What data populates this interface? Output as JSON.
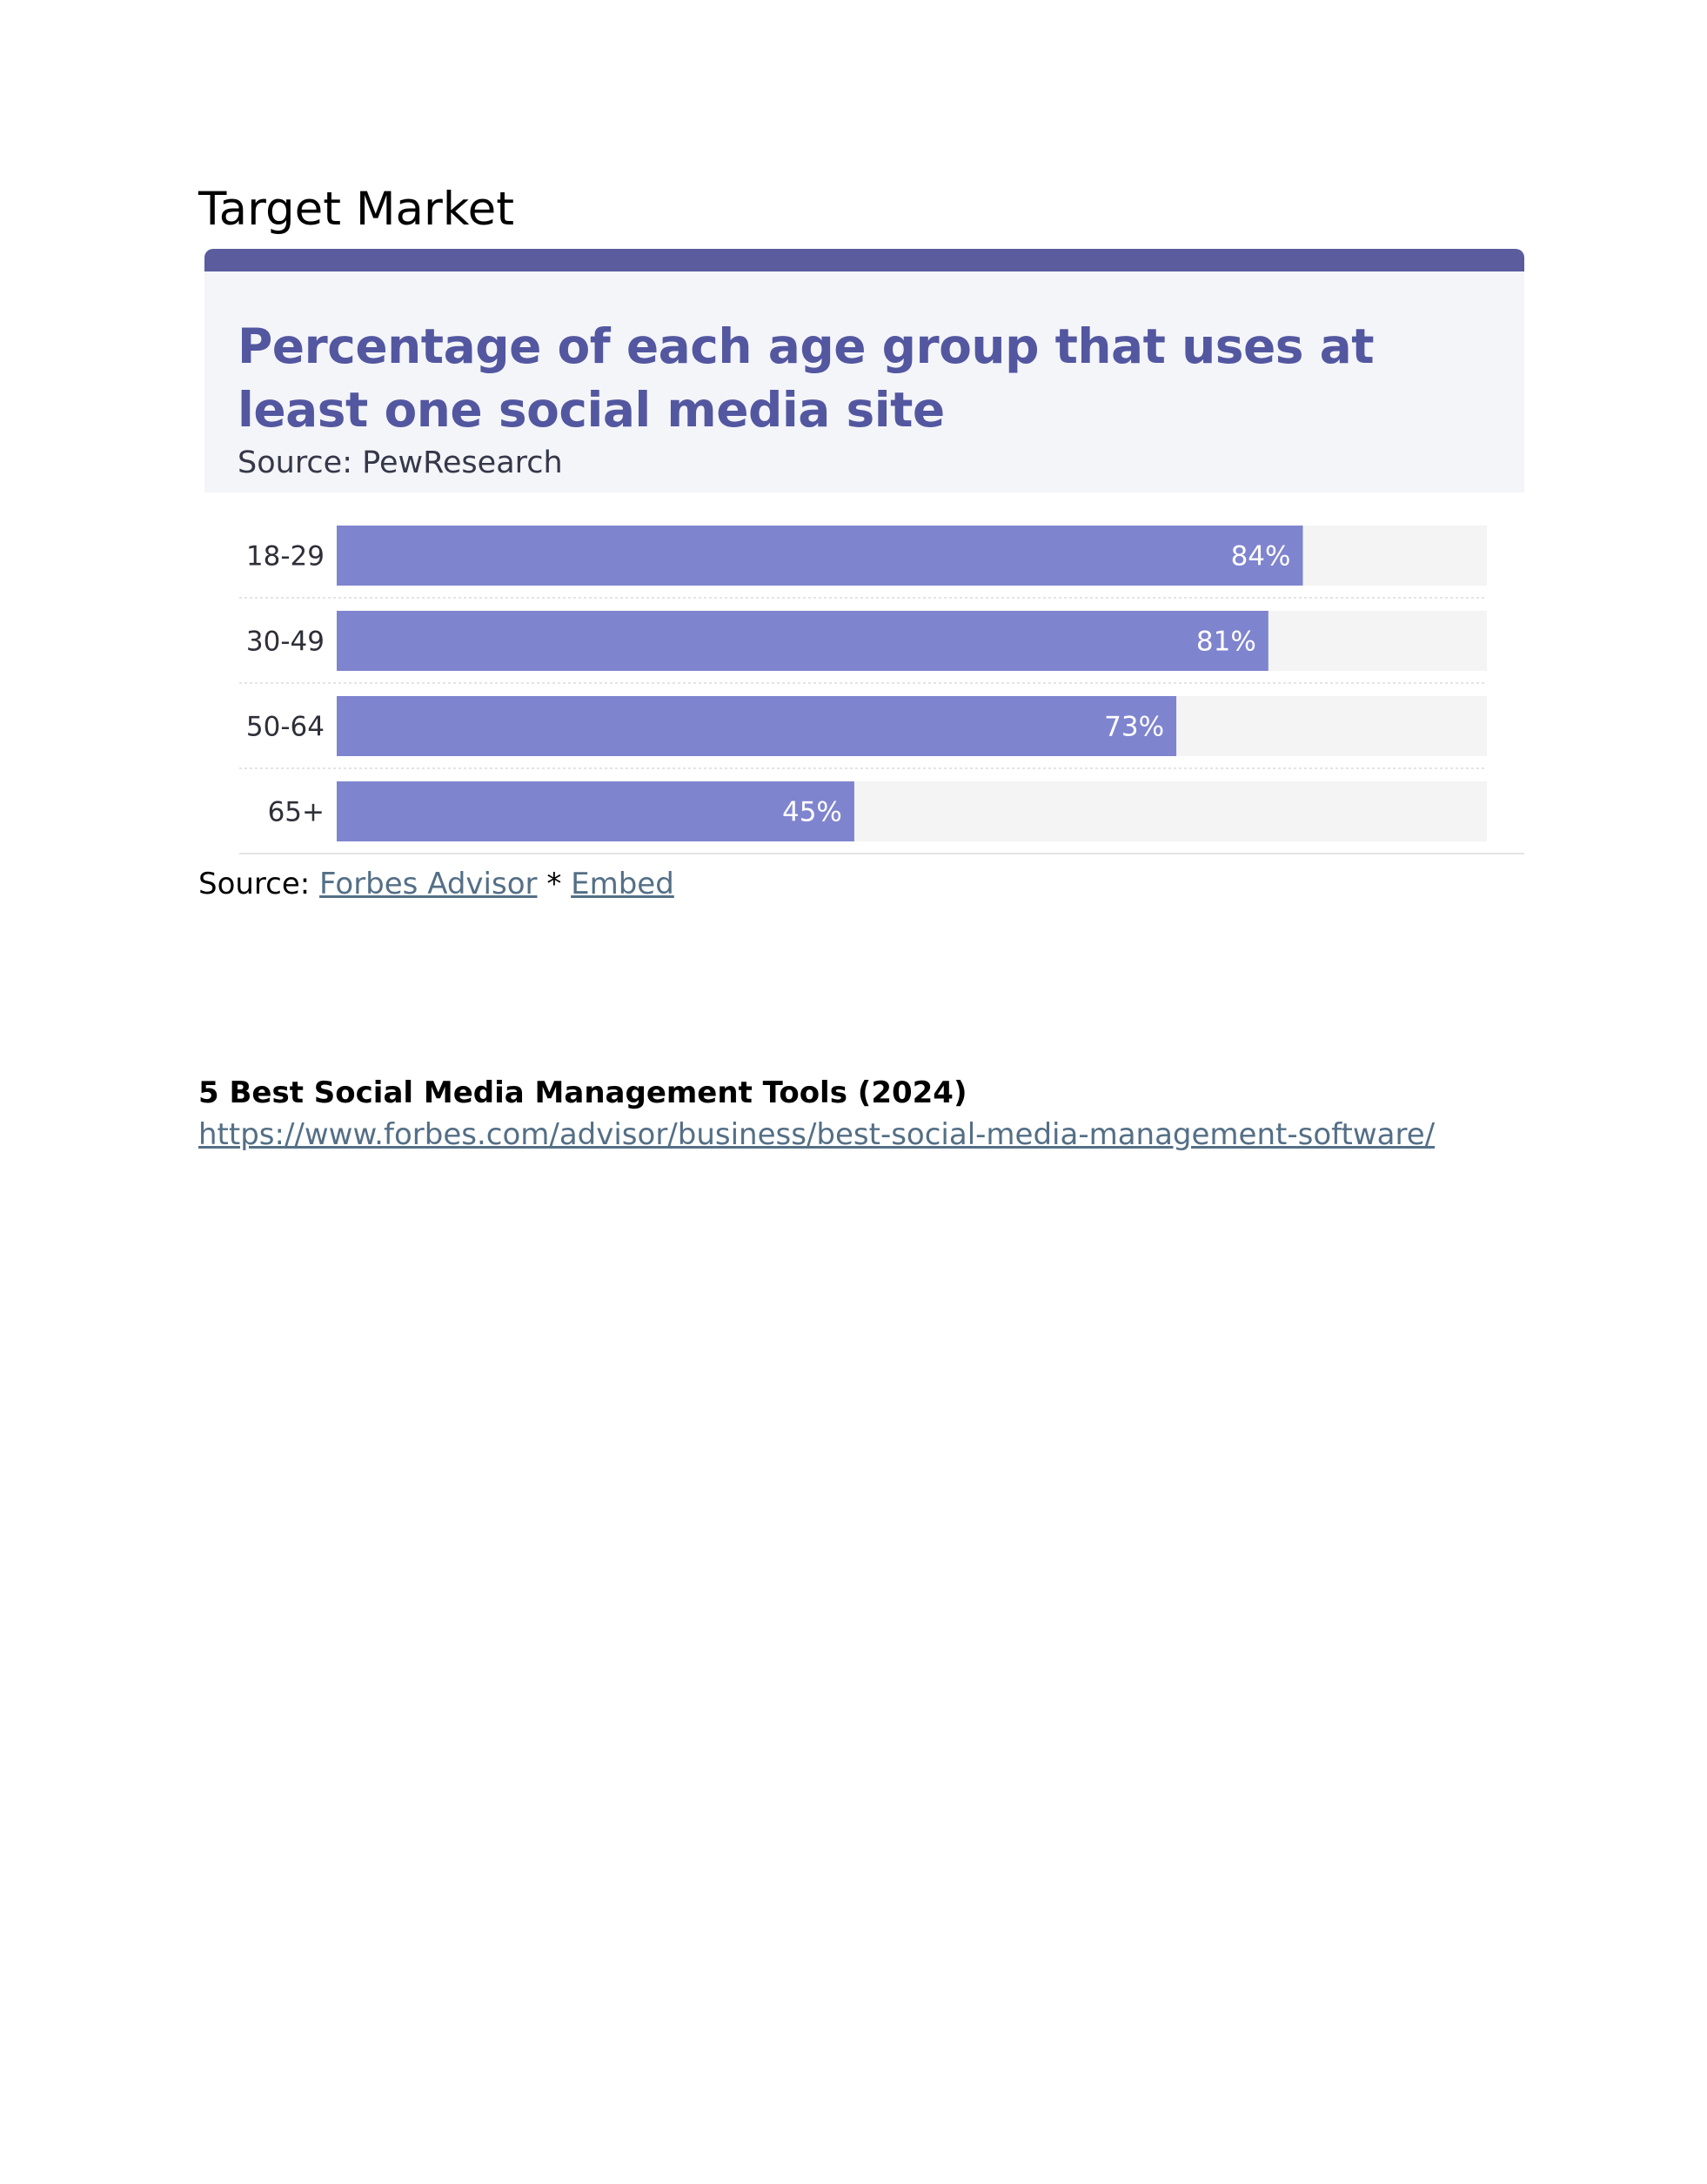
{
  "section": {
    "heading": "Target Market"
  },
  "chart_data": {
    "type": "bar",
    "orientation": "horizontal",
    "title": "Percentage of each age group that uses at least one social media site",
    "subtitle": "Source: PewResearch",
    "categories": [
      "18-29",
      "30-49",
      "50-64",
      "65+"
    ],
    "values": [
      84,
      81,
      73,
      45
    ],
    "value_labels": [
      "84%",
      "81%",
      "73%",
      "45%"
    ],
    "xlim": [
      0,
      100
    ],
    "grid": false,
    "legend": "none",
    "colors": {
      "bar": "#7f84cf",
      "track": "#f4f4f4",
      "title": "#5357a0",
      "header_bg": "#f4f5f9",
      "topbar": "#5a5c9e"
    }
  },
  "source": {
    "prefix": "Source:",
    "link1": "Forbes Advisor",
    "separator": "*",
    "link2": "Embed"
  },
  "article": {
    "title": "5 Best Social Media Management Tools (2024)",
    "url": "https://www.forbes.com/advisor/business/best-social-media-management-software/"
  }
}
